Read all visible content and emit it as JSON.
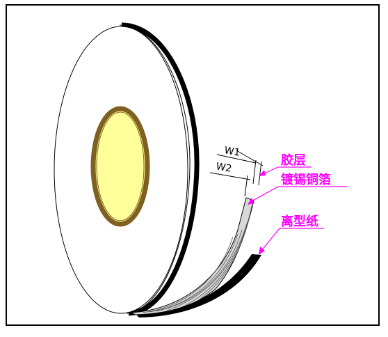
{
  "labels": {
    "adhesive": "胶层",
    "foil": "镀锡铜箔",
    "release_paper": "离型纸",
    "w1": "W1",
    "w2": "W2"
  },
  "colors": {
    "label_color": "#ff00ff",
    "core_fill": "#ffff99",
    "core_ring": "#806020",
    "outline": "#000000"
  }
}
